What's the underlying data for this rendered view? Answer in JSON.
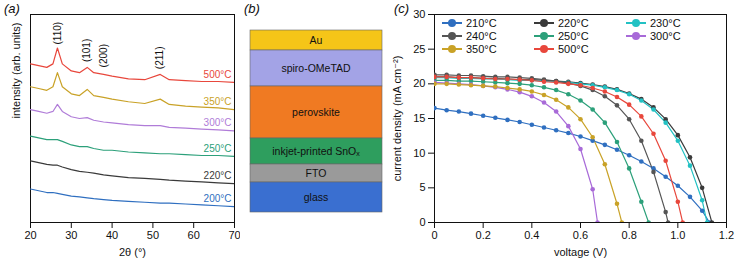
{
  "chart_data": [
    {
      "type": "line",
      "title": "(a)",
      "x_label": "2θ (°)",
      "y_label": "intensity (arb. units)",
      "x": [
        20,
        22,
        24,
        25.5,
        26.6,
        27.8,
        30,
        32,
        33.9,
        35.5,
        37.9,
        40,
        44,
        48,
        51.8,
        54,
        58,
        62,
        66,
        70
      ],
      "series": [
        {
          "name": "200°C",
          "color": "#2f6fc0",
          "values": [
            19,
            18,
            17,
            17,
            16.5,
            16,
            15,
            14.5,
            14,
            13.5,
            13,
            12.5,
            12,
            11.5,
            11,
            11,
            10.5,
            10,
            9.5,
            9
          ]
        },
        {
          "name": "220°C",
          "color": "#3a3a3a",
          "values": [
            35,
            34,
            33,
            32.5,
            32.5,
            31.5,
            30,
            29,
            28.5,
            28,
            27,
            26.5,
            25.5,
            25,
            24.5,
            24,
            23.5,
            23,
            22.5,
            22
          ]
        },
        {
          "name": "250°C",
          "color": "#2ca07a",
          "values": [
            49,
            48,
            47,
            47,
            47,
            46,
            44,
            43,
            43,
            42,
            41,
            41,
            40,
            39.5,
            39,
            39,
            38.5,
            38,
            38,
            37.5
          ]
        },
        {
          "name": "300°C",
          "color": "#b07cd8",
          "values": [
            64,
            63,
            62,
            63,
            67,
            63,
            60,
            59,
            59.5,
            58,
            57,
            56.5,
            55.5,
            55,
            55,
            54,
            53.5,
            53,
            52.5,
            52
          ]
        },
        {
          "name": "350°C",
          "color": "#c9a227",
          "values": [
            77,
            76,
            75,
            77,
            85,
            77,
            73,
            72,
            75.5,
            72,
            71,
            70,
            68.5,
            67.5,
            70,
            67,
            66,
            65.5,
            65,
            64
          ]
        },
        {
          "name": "500°C",
          "color": "#e8473c",
          "values": [
            90,
            89,
            88,
            90,
            99,
            90,
            86,
            85,
            88,
            85,
            84,
            83,
            81.5,
            81,
            84,
            81,
            80.5,
            80,
            80,
            79.5
          ]
        }
      ],
      "annotations": [
        {
          "text": "(110)",
          "x": 26.6,
          "y": 101
        },
        {
          "text": "(101)",
          "x": 33.9,
          "y": 91
        },
        {
          "text": "(200)",
          "x": 37.9,
          "y": 88
        },
        {
          "text": "(211)",
          "x": 51.8,
          "y": 87
        }
      ],
      "xlim": [
        20,
        70
      ],
      "xticks": [
        20,
        30,
        40,
        50,
        60,
        70
      ],
      "ylim": [
        0,
        118
      ],
      "yticks": [],
      "tick_labels": "x",
      "grid": false
    },
    {
      "type": "line",
      "title": "(c)",
      "x_label": "voltage (V)",
      "y_label": "current density (mA cm⁻²)",
      "marker": "circle",
      "legend": "top",
      "series": [
        {
          "name": "210°C",
          "color": "#2f6fc0",
          "x": [
            0,
            0.05,
            0.1,
            0.15,
            0.2,
            0.25,
            0.3,
            0.35,
            0.4,
            0.45,
            0.5,
            0.55,
            0.6,
            0.65,
            0.7,
            0.75,
            0.8,
            0.85,
            0.9,
            0.95,
            1.0,
            1.05,
            1.1,
            1.13
          ],
          "values": [
            16.5,
            16.2,
            16.0,
            15.7,
            15.4,
            15.1,
            14.8,
            14.5,
            14.1,
            13.7,
            13.3,
            12.9,
            12.4,
            11.8,
            11.2,
            10.5,
            9.7,
            8.8,
            7.8,
            6.6,
            5.3,
            3.7,
            1.7,
            0
          ]
        },
        {
          "name": "220°C",
          "color": "#3a3a3a",
          "x": [
            0,
            0.05,
            0.1,
            0.15,
            0.2,
            0.25,
            0.3,
            0.35,
            0.4,
            0.45,
            0.5,
            0.55,
            0.6,
            0.65,
            0.7,
            0.75,
            0.8,
            0.85,
            0.9,
            0.95,
            1.0,
            1.05,
            1.1,
            1.14
          ],
          "values": [
            21.0,
            21.0,
            20.9,
            20.9,
            20.8,
            20.8,
            20.7,
            20.6,
            20.6,
            20.5,
            20.4,
            20.3,
            20.1,
            19.9,
            19.6,
            19.2,
            18.6,
            17.8,
            16.6,
            14.9,
            12.6,
            9.4,
            5.0,
            0
          ]
        },
        {
          "name": "230°C",
          "color": "#22c1c3",
          "x": [
            0,
            0.05,
            0.1,
            0.15,
            0.2,
            0.25,
            0.3,
            0.35,
            0.4,
            0.45,
            0.5,
            0.55,
            0.6,
            0.65,
            0.7,
            0.75,
            0.8,
            0.85,
            0.9,
            0.95,
            1.0,
            1.05,
            1.1,
            1.12
          ],
          "values": [
            20.9,
            20.9,
            20.8,
            20.8,
            20.7,
            20.7,
            20.6,
            20.5,
            20.5,
            20.4,
            20.3,
            20.2,
            20.0,
            19.8,
            19.5,
            19.1,
            18.5,
            17.6,
            16.3,
            14.4,
            11.8,
            8.2,
            3.2,
            0
          ]
        },
        {
          "name": "240°C",
          "color": "#555555",
          "x": [
            0,
            0.05,
            0.1,
            0.15,
            0.2,
            0.25,
            0.3,
            0.35,
            0.4,
            0.45,
            0.5,
            0.55,
            0.6,
            0.65,
            0.7,
            0.75,
            0.8,
            0.85,
            0.9,
            0.95,
            0.96
          ],
          "values": [
            21.3,
            21.3,
            21.2,
            21.2,
            21.1,
            21.0,
            21.0,
            20.9,
            20.8,
            20.6,
            20.4,
            20.1,
            19.7,
            19.1,
            18.2,
            16.9,
            14.9,
            11.8,
            7.3,
            1.5,
            0
          ]
        },
        {
          "name": "250°C",
          "color": "#2ca07a",
          "x": [
            0,
            0.05,
            0.1,
            0.15,
            0.2,
            0.25,
            0.3,
            0.35,
            0.4,
            0.45,
            0.5,
            0.55,
            0.6,
            0.65,
            0.7,
            0.75,
            0.8,
            0.85,
            0.88
          ],
          "values": [
            20.5,
            20.5,
            20.4,
            20.4,
            20.3,
            20.2,
            20.1,
            20.0,
            19.8,
            19.5,
            19.1,
            18.5,
            17.6,
            16.3,
            14.4,
            11.6,
            7.8,
            3.0,
            0
          ]
        },
        {
          "name": "300°C",
          "color": "#a86ad8",
          "x": [
            0,
            0.05,
            0.1,
            0.15,
            0.2,
            0.25,
            0.3,
            0.35,
            0.4,
            0.45,
            0.5,
            0.55,
            0.6,
            0.65,
            0.67
          ],
          "values": [
            20.2,
            20.1,
            20.0,
            19.9,
            19.7,
            19.5,
            19.2,
            18.8,
            18.2,
            17.3,
            16.0,
            13.9,
            10.6,
            4.8,
            0
          ]
        },
        {
          "name": "350°C",
          "color": "#c9a227",
          "x": [
            0,
            0.05,
            0.1,
            0.15,
            0.2,
            0.25,
            0.3,
            0.35,
            0.4,
            0.45,
            0.5,
            0.55,
            0.6,
            0.65,
            0.7,
            0.75,
            0.77
          ],
          "values": [
            20.0,
            20.0,
            19.9,
            19.8,
            19.7,
            19.6,
            19.4,
            19.2,
            18.9,
            18.4,
            17.7,
            16.6,
            14.9,
            12.3,
            8.4,
            2.7,
            0
          ]
        },
        {
          "name": "500°C",
          "color": "#e8473c",
          "x": [
            0,
            0.05,
            0.1,
            0.15,
            0.2,
            0.25,
            0.3,
            0.35,
            0.4,
            0.45,
            0.5,
            0.55,
            0.6,
            0.65,
            0.7,
            0.75,
            0.8,
            0.85,
            0.9,
            0.95,
            1.0,
            1.02
          ],
          "values": [
            21.0,
            21.0,
            20.9,
            20.9,
            20.8,
            20.7,
            20.7,
            20.6,
            20.5,
            20.3,
            20.2,
            20.0,
            19.8,
            19.4,
            18.9,
            18.1,
            17.0,
            15.3,
            12.8,
            8.9,
            3.0,
            0
          ]
        }
      ],
      "xlim": [
        0,
        1.2
      ],
      "xticks": [
        0,
        0.2,
        0.4,
        0.6,
        0.8,
        {
          "value": 1,
          "label": "1.0"
        },
        1.2
      ],
      "ylim": [
        0,
        30
      ],
      "yticks": [
        0,
        5,
        10,
        15,
        20,
        25,
        30
      ],
      "grid": false
    }
  ],
  "diagram": {
    "title": "(b)",
    "layers": [
      {
        "label": "Au",
        "color": "#f5c518"
      },
      {
        "label": "spiro-OMeTAD",
        "color": "#a3a3e6"
      },
      {
        "label": "perovskite",
        "color": "#f07a22"
      },
      {
        "label": "inkjet-printed SnOₓ",
        "color": "#2e9e5e"
      },
      {
        "label": "FTO",
        "color": "#9a9a9a"
      },
      {
        "label": "glass",
        "color": "#3a6fd0"
      }
    ]
  }
}
